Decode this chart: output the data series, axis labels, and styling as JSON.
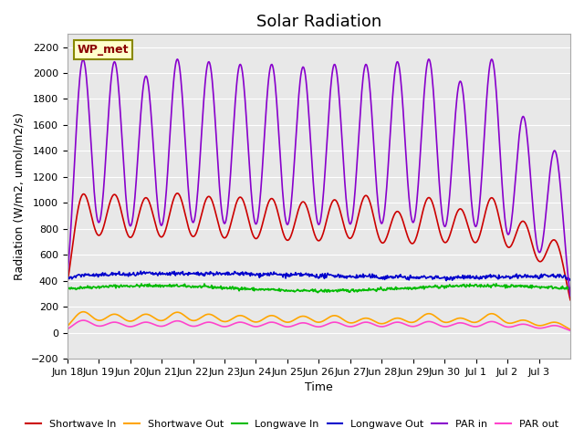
{
  "title": "Solar Radiation",
  "ylabel": "Radiation (W/m2, umol/m2/s)",
  "xlabel": "Time",
  "ylim": [
    -200,
    2300
  ],
  "yticks": [
    -200,
    0,
    200,
    400,
    600,
    800,
    1000,
    1200,
    1400,
    1600,
    1800,
    2000,
    2200
  ],
  "bg_color": "#e8e8e8",
  "fig_color": "#ffffff",
  "label_box_text": "WP_met",
  "label_box_facecolor": "#ffffcc",
  "label_box_edgecolor": "#888800",
  "series": {
    "shortwave_in": {
      "label": "Shortwave In",
      "color": "#cc0000",
      "lw": 1.2
    },
    "shortwave_out": {
      "label": "Shortwave Out",
      "color": "#ffa500",
      "lw": 1.2
    },
    "longwave_in": {
      "label": "Longwave In",
      "color": "#00bb00",
      "lw": 1.2
    },
    "longwave_out": {
      "label": "Longwave Out",
      "color": "#0000cc",
      "lw": 1.2
    },
    "par_in": {
      "label": "PAR in",
      "color": "#8800cc",
      "lw": 1.2
    },
    "par_out": {
      "label": "PAR out",
      "color": "#ff44cc",
      "lw": 1.2
    }
  },
  "x_tick_labels": [
    "Jun 18",
    "Jun 19",
    "Jun 20",
    "Jun 21",
    "Jun 22",
    "Jun 23",
    "Jun 24",
    "Jun 25",
    "Jun 26",
    "Jun 27",
    "Jun 28",
    "Jun 29",
    "Jun 30",
    "Jul 1",
    "Jul 2",
    "Jul 3"
  ],
  "sw_in_amps": [
    1050,
    1030,
    1005,
    1040,
    1015,
    1010,
    1000,
    975,
    990,
    1025,
    900,
    1010,
    920,
    1010,
    830,
    700
  ],
  "sw_out_amps": [
    160,
    140,
    140,
    155,
    140,
    130,
    130,
    125,
    130,
    110,
    110,
    145,
    110,
    145,
    95,
    80
  ],
  "par_in_amps": [
    2100,
    2080,
    1970,
    2100,
    2080,
    2060,
    2060,
    2040,
    2060,
    2060,
    2080,
    2100,
    1930,
    2100,
    1660,
    1400
  ],
  "par_out_amps": [
    95,
    80,
    80,
    90,
    80,
    80,
    80,
    75,
    80,
    80,
    80,
    85,
    75,
    85,
    65,
    55
  ],
  "n_days": 16
}
